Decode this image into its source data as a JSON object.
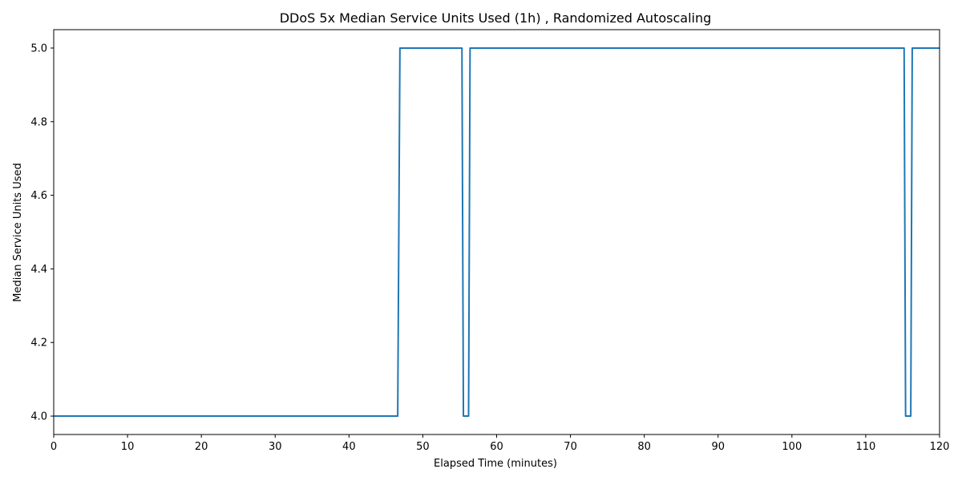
{
  "chart_data": {
    "type": "line",
    "title": "DDoS 5x Median Service Units Used (1h) , Randomized Autoscaling",
    "xlabel": "Elapsed Time (minutes)",
    "ylabel": "Median Service Units Used",
    "xlim": [
      0,
      120
    ],
    "ylim": [
      3.95,
      5.05
    ],
    "xticks": [
      0,
      10,
      20,
      30,
      40,
      50,
      60,
      70,
      80,
      90,
      100,
      110,
      120
    ],
    "yticks": [
      4.0,
      4.2,
      4.4,
      4.6,
      4.8,
      5.0
    ],
    "ytick_labels": [
      "4.0",
      "4.2",
      "4.4",
      "4.6",
      "4.8",
      "5.0"
    ],
    "grid": false,
    "series": [
      {
        "color": "#1f77b4",
        "x": [
          0,
          46.6,
          46.9,
          55.3,
          55.5,
          56.2,
          56.4,
          115.2,
          115.4,
          116.1,
          116.3,
          120
        ],
        "y": [
          4.0,
          4.0,
          5.0,
          5.0,
          4.0,
          4.0,
          5.0,
          5.0,
          4.0,
          4.0,
          5.0,
          5.0
        ]
      }
    ]
  }
}
